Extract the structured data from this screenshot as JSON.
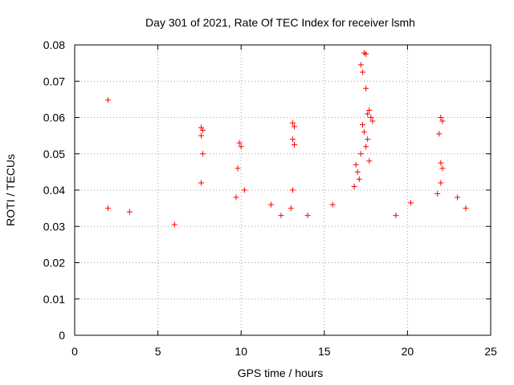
{
  "chart_data": {
    "type": "scatter",
    "title": "Day 301 of 2021, Rate Of TEC Index for receiver lsmh",
    "xlabel": "GPS time / hours",
    "ylabel": "ROTI / TECUs",
    "xlim": [
      0,
      25
    ],
    "ylim": [
      0,
      0.08
    ],
    "xticks": [
      "0",
      "5",
      "10",
      "15",
      "20",
      "25"
    ],
    "yticks": [
      "0",
      "0.01",
      "0.02",
      "0.03",
      "0.04",
      "0.05",
      "0.06",
      "0.07",
      "0.08"
    ],
    "grid": true,
    "marker": "plus",
    "color": "#ff0000",
    "series": [
      {
        "name": "",
        "points": [
          [
            2.0,
            0.0648
          ],
          [
            7.6,
            0.0572
          ],
          [
            7.7,
            0.0565
          ],
          [
            7.6,
            0.055
          ],
          [
            7.7,
            0.05
          ],
          [
            7.6,
            0.042
          ],
          [
            9.9,
            0.053
          ],
          [
            10.0,
            0.052
          ],
          [
            9.8,
            0.046
          ],
          [
            10.2,
            0.04
          ],
          [
            9.7,
            0.038
          ],
          [
            13.1,
            0.0585
          ],
          [
            13.2,
            0.0575
          ],
          [
            13.1,
            0.054
          ],
          [
            13.2,
            0.0525
          ],
          [
            13.1,
            0.04
          ],
          [
            13.0,
            0.035
          ],
          [
            17.4,
            0.0778
          ],
          [
            17.5,
            0.0775
          ],
          [
            17.2,
            0.0745
          ],
          [
            17.3,
            0.0725
          ],
          [
            17.5,
            0.068
          ],
          [
            17.7,
            0.062
          ],
          [
            17.6,
            0.061
          ],
          [
            17.8,
            0.06
          ],
          [
            17.9,
            0.059
          ],
          [
            17.3,
            0.058
          ],
          [
            17.4,
            0.056
          ],
          [
            17.6,
            0.054
          ],
          [
            17.5,
            0.052
          ],
          [
            17.2,
            0.05
          ],
          [
            17.7,
            0.048
          ],
          [
            16.9,
            0.047
          ],
          [
            17.0,
            0.045
          ],
          [
            17.1,
            0.043
          ],
          [
            16.8,
            0.041
          ],
          [
            22.0,
            0.06
          ],
          [
            22.1,
            0.059
          ],
          [
            21.9,
            0.0555
          ],
          [
            22.0,
            0.0475
          ],
          [
            22.1,
            0.046
          ],
          [
            22.0,
            0.042
          ],
          [
            21.8,
            0.039
          ],
          [
            2.0,
            0.035
          ],
          [
            3.3,
            0.034
          ],
          [
            6.0,
            0.0305
          ],
          [
            11.8,
            0.036
          ],
          [
            12.4,
            0.033
          ],
          [
            14.0,
            0.033
          ],
          [
            15.5,
            0.036
          ],
          [
            19.3,
            0.033
          ],
          [
            20.2,
            0.0365
          ],
          [
            23.0,
            0.038
          ],
          [
            23.5,
            0.035
          ]
        ]
      }
    ]
  }
}
